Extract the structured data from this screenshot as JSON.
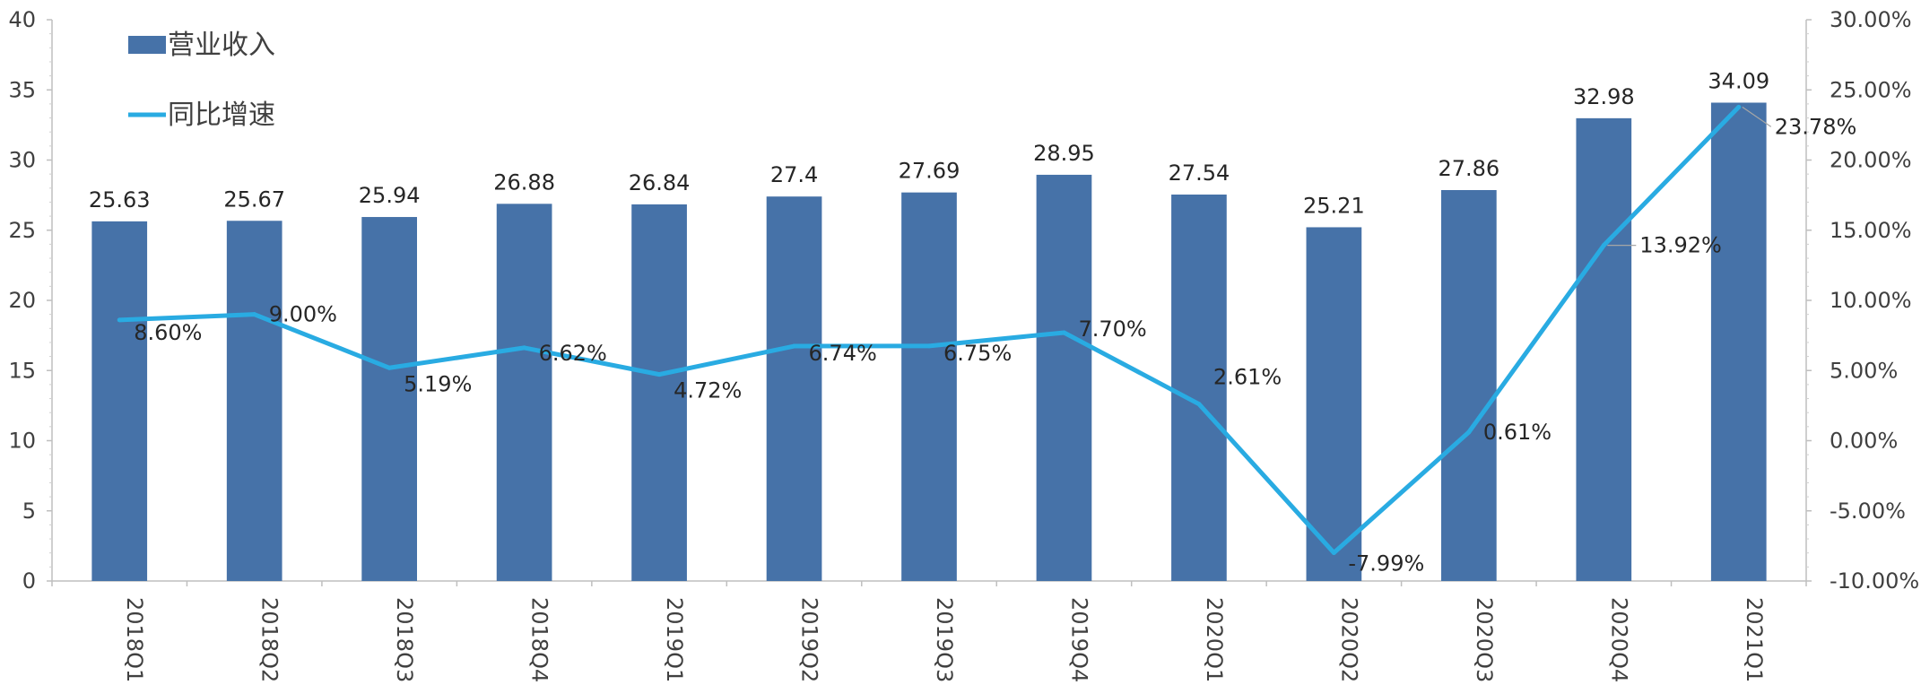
{
  "chart_data": {
    "type": "bar+line",
    "categories": [
      "2018Q1",
      "2018Q2",
      "2018Q3",
      "2018Q4",
      "2019Q1",
      "2019Q2",
      "2019Q3",
      "2019Q4",
      "2020Q1",
      "2020Q2",
      "2020Q3",
      "2020Q4",
      "2021Q1"
    ],
    "series": [
      {
        "name": "营业收入",
        "type": "bar",
        "axis": "left",
        "color": "#4672A8",
        "values": [
          25.63,
          25.67,
          25.94,
          26.88,
          26.84,
          27.4,
          27.69,
          28.95,
          27.54,
          25.21,
          27.86,
          32.98,
          34.09
        ],
        "labels": [
          "25.63",
          "25.67",
          "25.94",
          "26.88",
          "26.84",
          "27.4",
          "27.69",
          "28.95",
          "27.54",
          "25.21",
          "27.86",
          "32.98",
          "34.09"
        ]
      },
      {
        "name": "同比增速",
        "type": "line",
        "axis": "right",
        "color": "#29ABE2",
        "values": [
          8.6,
          9.0,
          5.19,
          6.62,
          4.72,
          6.74,
          6.75,
          7.7,
          2.61,
          -7.99,
          0.61,
          13.92,
          23.78
        ],
        "labels": [
          "8.60%",
          "9.00%",
          "5.19%",
          "6.62%",
          "4.72%",
          "6.74%",
          "6.75%",
          "7.70%",
          "2.61%",
          "-7.99%",
          "0.61%",
          "13.92%",
          "23.78%"
        ]
      }
    ],
    "left_axis": {
      "min": 0,
      "max": 40,
      "step": 5,
      "ticks": [
        "0",
        "5",
        "10",
        "15",
        "20",
        "25",
        "30",
        "35",
        "40"
      ]
    },
    "right_axis": {
      "min": -10,
      "max": 30,
      "step": 5,
      "ticks": [
        "-10.00%",
        "-5.00%",
        "0.00%",
        "5.00%",
        "10.00%",
        "15.00%",
        "20.00%",
        "25.00%",
        "30.00%"
      ]
    },
    "legend": {
      "position": "top-left",
      "items": [
        "营业收入",
        "同比增速"
      ]
    },
    "grid": false,
    "title": "",
    "xlabel": "",
    "ylabel": ""
  }
}
